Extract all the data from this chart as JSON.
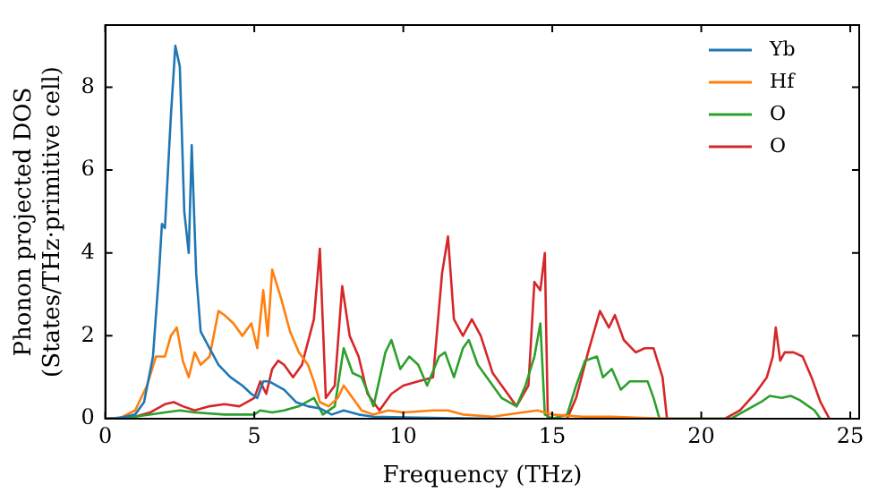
{
  "chart_data": {
    "type": "line",
    "xlabel": "Frequency (THz)",
    "ylabel": "Phonon projected DOS\n(States/THz·primitive cell)",
    "xlim": [
      0,
      25.3
    ],
    "ylim": [
      0,
      9.5
    ],
    "xticks": [
      0,
      5,
      10,
      15,
      20,
      25
    ],
    "yticks": [
      0,
      2,
      4,
      6,
      8
    ],
    "grid": false,
    "legend": "top right",
    "marker": "none",
    "line_style": "solid",
    "series": [
      {
        "name": "Yb",
        "color": "#1f77b4",
        "x": [
          0,
          0.5,
          1,
          1.3,
          1.6,
          1.8,
          1.9,
          2.0,
          2.2,
          2.35,
          2.5,
          2.65,
          2.8,
          2.9,
          3.05,
          3.2,
          3.5,
          3.8,
          4.2,
          4.6,
          4.9,
          5.1,
          5.3,
          5.5,
          6.0,
          6.4,
          6.8,
          7.2,
          7.6,
          8,
          8.5,
          9,
          10,
          11,
          12,
          13
        ],
        "values": [
          0,
          0.02,
          0.1,
          0.4,
          1.5,
          3.5,
          4.7,
          4.6,
          7.3,
          9.0,
          8.5,
          5.0,
          4.0,
          6.6,
          3.5,
          2.1,
          1.7,
          1.3,
          1.0,
          0.8,
          0.6,
          0.5,
          0.9,
          0.9,
          0.7,
          0.4,
          0.3,
          0.25,
          0.1,
          0.2,
          0.1,
          0.05,
          0.03,
          0.02,
          0.01,
          0
        ]
      },
      {
        "name": "Hf",
        "color": "#ff7f0e",
        "x": [
          0,
          0.5,
          1,
          1.4,
          1.7,
          2.0,
          2.2,
          2.4,
          2.6,
          2.8,
          3.0,
          3.2,
          3.5,
          3.8,
          4.0,
          4.3,
          4.6,
          4.9,
          5.1,
          5.3,
          5.45,
          5.6,
          5.9,
          6.2,
          6.5,
          6.8,
          7.0,
          7.2,
          7.5,
          7.8,
          8.0,
          8.3,
          8.6,
          9,
          9.5,
          10,
          11,
          11.5,
          12,
          13,
          14,
          14.5,
          15,
          16,
          17,
          18,
          19
        ],
        "values": [
          0,
          0.02,
          0.2,
          0.8,
          1.5,
          1.5,
          2.0,
          2.2,
          1.4,
          1.0,
          1.6,
          1.3,
          1.5,
          2.6,
          2.5,
          2.3,
          2.0,
          2.3,
          1.7,
          3.1,
          2.0,
          3.6,
          2.9,
          2.1,
          1.6,
          1.3,
          0.9,
          0.4,
          0.3,
          0.5,
          0.8,
          0.5,
          0.2,
          0.1,
          0.2,
          0.15,
          0.2,
          0.2,
          0.1,
          0.05,
          0.15,
          0.2,
          0.1,
          0.05,
          0.05,
          0.02,
          0
        ]
      },
      {
        "name": "O",
        "color": "#2ca02c",
        "x": [
          0,
          1,
          2,
          2.5,
          3,
          4,
          5,
          5.2,
          5.6,
          6,
          6.5,
          7,
          7.3,
          7.7,
          8,
          8.3,
          8.6,
          9.0,
          9.4,
          9.6,
          9.9,
          10.2,
          10.5,
          10.8,
          11.2,
          11.4,
          11.7,
          12.0,
          12.2,
          12.5,
          12.9,
          13.3,
          13.8,
          14.1,
          14.4,
          14.6,
          14.75,
          15.0,
          15.5,
          15.8,
          16.1,
          16.5,
          16.7,
          17.0,
          17.3,
          17.6,
          18.2,
          18.4,
          18.6,
          21,
          21.5,
          22,
          22.3,
          22.7,
          23,
          23.3,
          23.8,
          24
        ],
        "values": [
          0,
          0.05,
          0.15,
          0.2,
          0.15,
          0.1,
          0.1,
          0.2,
          0.15,
          0.2,
          0.3,
          0.5,
          0.1,
          0.3,
          1.7,
          1.1,
          1.0,
          0.3,
          1.6,
          1.9,
          1.2,
          1.5,
          1.3,
          0.8,
          1.5,
          1.6,
          1.0,
          1.7,
          1.9,
          1.3,
          0.9,
          0.5,
          0.3,
          0.8,
          1.5,
          2.3,
          0.1,
          0,
          0.1,
          0.8,
          1.4,
          1.5,
          1.0,
          1.2,
          0.7,
          0.9,
          0.9,
          0.5,
          0,
          0,
          0.2,
          0.4,
          0.55,
          0.5,
          0.55,
          0.45,
          0.2,
          0
        ]
      },
      {
        "name": "O",
        "color": "#d62728",
        "x": [
          0,
          1,
          1.5,
          2,
          2.3,
          2.6,
          3,
          3.5,
          4,
          4.5,
          5,
          5.2,
          5.4,
          5.6,
          5.8,
          6.0,
          6.3,
          6.6,
          7.0,
          7.2,
          7.4,
          7.7,
          7.95,
          8.2,
          8.5,
          8.8,
          9.2,
          9.6,
          10.0,
          10.5,
          11.0,
          11.3,
          11.5,
          11.7,
          12.0,
          12.3,
          12.6,
          13.0,
          13.4,
          13.8,
          14.2,
          14.4,
          14.6,
          14.75,
          14.85,
          15.5,
          15.8,
          16.2,
          16.6,
          16.9,
          17.1,
          17.4,
          17.8,
          18.1,
          18.4,
          18.7,
          18.85,
          20.8,
          21.3,
          21.8,
          22.2,
          22.4,
          22.5,
          22.65,
          22.8,
          23.1,
          23.4,
          23.7,
          24.0,
          24.3
        ],
        "values": [
          0,
          0.05,
          0.15,
          0.35,
          0.4,
          0.3,
          0.2,
          0.3,
          0.35,
          0.3,
          0.5,
          0.9,
          0.6,
          1.2,
          1.4,
          1.3,
          1.0,
          1.3,
          2.4,
          4.1,
          0.5,
          0.8,
          3.2,
          2.0,
          1.5,
          0.6,
          0.2,
          0.6,
          0.8,
          0.9,
          1.0,
          3.5,
          4.4,
          2.4,
          2.0,
          2.4,
          2.0,
          1.1,
          0.7,
          0.3,
          0.8,
          3.3,
          3.1,
          4.0,
          0,
          0,
          0.5,
          1.6,
          2.6,
          2.2,
          2.5,
          1.9,
          1.6,
          1.7,
          1.7,
          1.0,
          0,
          0,
          0.2,
          0.6,
          1.0,
          1.5,
          2.2,
          1.4,
          1.6,
          1.6,
          1.5,
          1.0,
          0.4,
          0
        ]
      }
    ]
  }
}
